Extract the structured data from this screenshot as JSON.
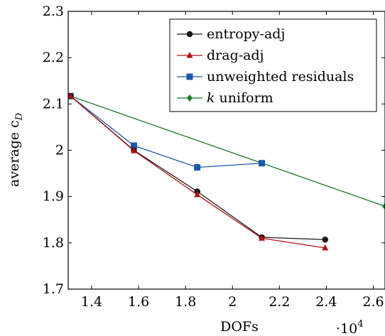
{
  "chart_data": {
    "type": "line",
    "xlabel": "DOFs",
    "x_multiplier_label": "·10",
    "x_multiplier_exp": "4",
    "ylabel_main": "average c",
    "ylabel_sub": "D",
    "xlim": [
      1.3,
      2.65
    ],
    "ylim": [
      1.7,
      2.3
    ],
    "xticks": [
      1.4,
      1.6,
      1.8,
      2.0,
      2.2,
      2.4,
      2.6
    ],
    "xtick_labels": [
      "1.4",
      "1.6",
      "1.8",
      "2",
      "2.2",
      "2.4",
      "2.6"
    ],
    "yticks": [
      1.7,
      1.8,
      1.9,
      2.0,
      2.1,
      2.2,
      2.3
    ],
    "ytick_labels": [
      "1.7",
      "1.8",
      "1.9",
      "2",
      "2.1",
      "2.2",
      "2.3"
    ],
    "legend_position": "top-right",
    "grid": false,
    "series": [
      {
        "name": "entropy-adj",
        "color": "#1a1a1a",
        "marker": "circle",
        "points": [
          [
            1.31,
            2.117
          ],
          [
            1.58,
            2.0
          ],
          [
            1.85,
            1.911
          ],
          [
            2.125,
            1.812
          ],
          [
            2.395,
            1.807
          ]
        ]
      },
      {
        "name": "drag-adj",
        "color": "#b01010",
        "marker": "triangle",
        "points": [
          [
            1.31,
            2.117
          ],
          [
            1.58,
            1.999
          ],
          [
            1.85,
            1.904
          ],
          [
            2.125,
            1.81
          ],
          [
            2.395,
            1.789
          ]
        ]
      },
      {
        "name": "unweighted residuals",
        "color": "#1c5aa8",
        "marker": "square",
        "points": [
          [
            1.31,
            2.117
          ],
          [
            1.58,
            2.01
          ],
          [
            1.85,
            1.963
          ],
          [
            2.125,
            1.972
          ]
        ]
      },
      {
        "name": "k uniform",
        "name_italic": "k",
        "name_rest": " uniform",
        "color": "#157a2b",
        "marker": "diamond",
        "points": [
          [
            1.31,
            2.117
          ],
          [
            2.65,
            1.879
          ]
        ]
      }
    ]
  }
}
